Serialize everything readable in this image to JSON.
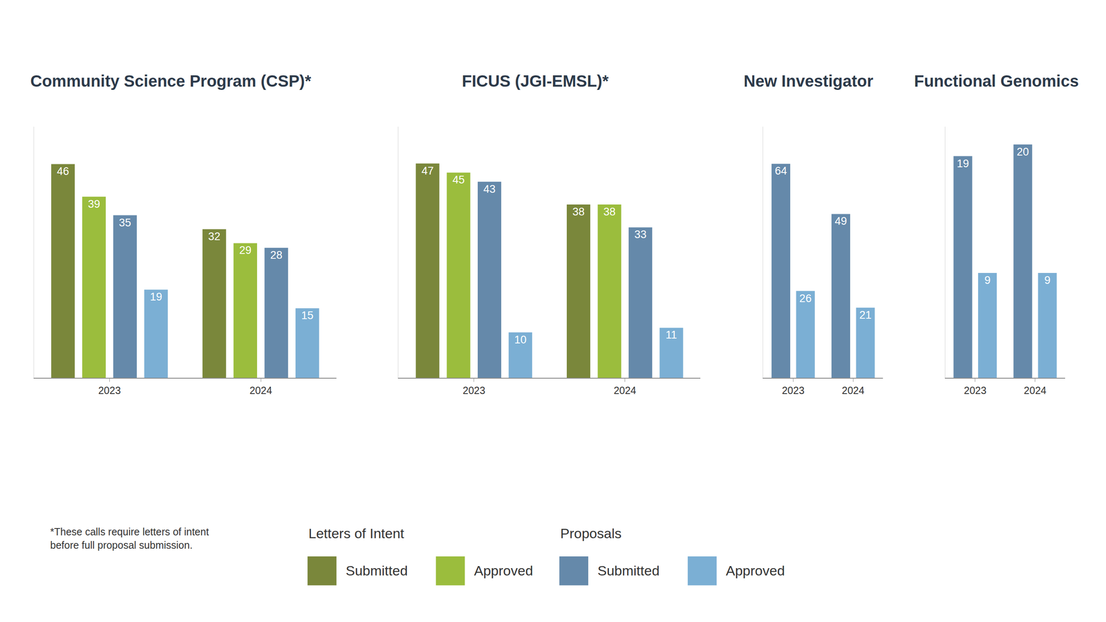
{
  "chart_data": [
    {
      "type": "bar",
      "title": "Community Science Program (CSP)*",
      "categories": [
        "2023",
        "2024"
      ],
      "series": [
        {
          "name": "Submitted",
          "group": "Letters of Intent",
          "color": "#7a873b",
          "values": [
            46,
            32
          ]
        },
        {
          "name": "Approved",
          "group": "Letters of Intent",
          "color": "#9bbd3d",
          "values": [
            39,
            29
          ]
        },
        {
          "name": "Submitted",
          "group": "Proposals",
          "color": "#6589aa",
          "values": [
            35,
            28
          ]
        },
        {
          "name": "Approved",
          "group": "Proposals",
          "color": "#7bafd4",
          "values": [
            19,
            15
          ]
        }
      ],
      "ylim": [
        0,
        54
      ],
      "yticks": [],
      "data_labels": true,
      "tick_labels": "x",
      "annotations": [
        "*These calls require letters of intent\nbefore full proposal submission."
      ]
    },
    {
      "type": "bar",
      "title": "FICUS (JGI-EMSL)*",
      "categories": [
        "2023",
        "2024"
      ],
      "series": [
        {
          "name": "Submitted",
          "group": "Letters of Intent",
          "color": "#7a873b",
          "values": [
            47,
            38
          ]
        },
        {
          "name": "Approved",
          "group": "Letters of Intent",
          "color": "#9bbd3d",
          "values": [
            45,
            38
          ]
        },
        {
          "name": "Submitted",
          "group": "Proposals",
          "color": "#6589aa",
          "values": [
            43,
            33
          ]
        },
        {
          "name": "Approved",
          "group": "Proposals",
          "color": "#7bafd4",
          "values": [
            10,
            11
          ]
        }
      ],
      "ylim": [
        0,
        55
      ],
      "yticks": [],
      "data_labels": true,
      "tick_labels": "x"
    },
    {
      "type": "bar",
      "title": "New Investigator",
      "categories": [
        "2023",
        "2024"
      ],
      "series": [
        {
          "name": "Submitted",
          "group": "Proposals",
          "color": "#6589aa",
          "values": [
            64,
            49
          ]
        },
        {
          "name": "Approved",
          "group": "Proposals",
          "color": "#7bafd4",
          "values": [
            26,
            21
          ]
        }
      ],
      "ylim": [
        0,
        75
      ],
      "yticks": [],
      "data_labels": true,
      "tick_labels": "x"
    },
    {
      "type": "bar",
      "title": "Functional Genomics",
      "categories": [
        "2023",
        "2024"
      ],
      "series": [
        {
          "name": "Submitted",
          "group": "Proposals",
          "color": "#6589aa",
          "values": [
            19,
            20
          ]
        },
        {
          "name": "Approved",
          "group": "Proposals",
          "color": "#7bafd4",
          "values": [
            9,
            9
          ]
        }
      ],
      "ylim": [
        0,
        21.5
      ],
      "yticks": [],
      "data_labels": true,
      "tick_labels": "x"
    }
  ]
}
